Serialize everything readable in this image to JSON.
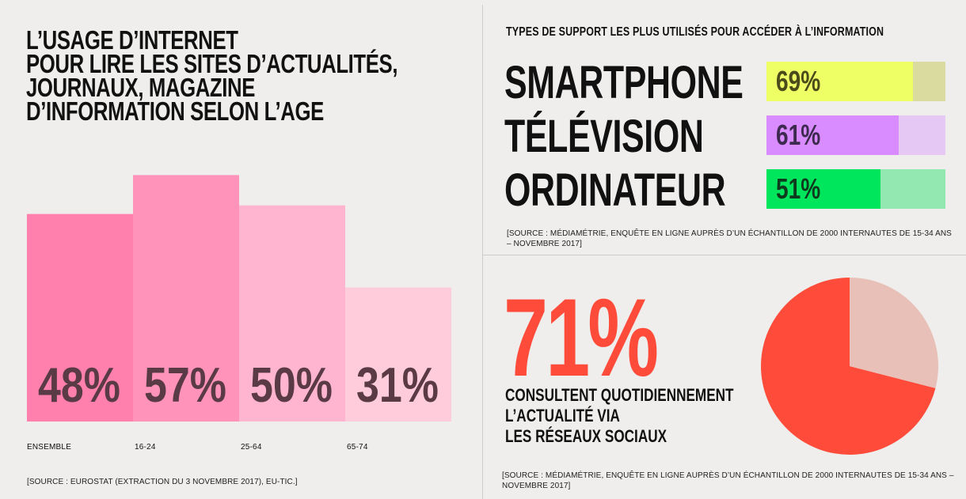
{
  "left": {
    "title_lines": [
      "L’USAGE D’INTERNET",
      "POUR LIRE LES SITES D’ACTUALITÉS,",
      "JOURNAUX, MAGAZINE",
      "D’INFORMATION SELON L’AGE"
    ],
    "source": "[SOURCE : EUROSTAT (EXTRACTION DU 3 NOVEMBRE 2017), EU-TIC.]"
  },
  "right_top": {
    "title": "TYPES DE SUPPORT LES PLUS UTILISÉS POUR ACCÉDER À L’INFORMATION",
    "source_lines": [
      "[SOURCE : MÉDIAMÉTRIE, ENQUÊTE EN LIGNE AUPRÈS D’UN ÉCHANTILLON DE 2000 INTERNAUTES DE 15-34 ANS",
      "– NOVEMBRE 2017]"
    ]
  },
  "right_bottom": {
    "big_value": "71%",
    "text_lines": [
      "CONSULTENT QUOTIDIENNEMENT",
      "L’ACTUALITÉ VIA",
      "LES RÉSEAUX SOCIAUX"
    ],
    "source_lines": [
      "[SOURCE : MÉDIAMÉTRIE, ENQUÊTE EN LIGNE AUPRÈS D’UN ÉCHANTILLON DE 2000 INTERNAUTES DE 15-34 ANS –",
      "NOVEMBRE 2017]"
    ]
  },
  "chart_data": [
    {
      "type": "bar",
      "categories": [
        "ENSEMBLE",
        "16-24",
        "25-64",
        "65-74"
      ],
      "values": [
        48,
        57,
        50,
        31
      ],
      "value_labels": [
        "48%",
        "57%",
        "50%",
        "31%"
      ],
      "colors": [
        "#ff80ad",
        "#ff93ba",
        "#ffb5cf",
        "#ffccdc"
      ],
      "label_color": "#5a3a45"
    },
    {
      "type": "bar",
      "orientation": "horizontal",
      "categories": [
        "SMARTPHONE",
        "TÉLÉVISION",
        "ORDINATEUR"
      ],
      "values": [
        69,
        61,
        51
      ],
      "value_labels": [
        "69%",
        "61%",
        "51%"
      ],
      "fill_colors": [
        "#eeff66",
        "#d98cff",
        "#00e65c"
      ],
      "track_colors": [
        "#d9dc9e",
        "#e6c8f5",
        "#93e8b2"
      ],
      "text_colors": [
        "#4a4a1a",
        "#3e2a4f",
        "#0e3a1e"
      ]
    },
    {
      "type": "pie",
      "values": [
        71,
        29
      ],
      "colors": [
        "#ff4b3a",
        "#e8c0b8"
      ]
    }
  ]
}
